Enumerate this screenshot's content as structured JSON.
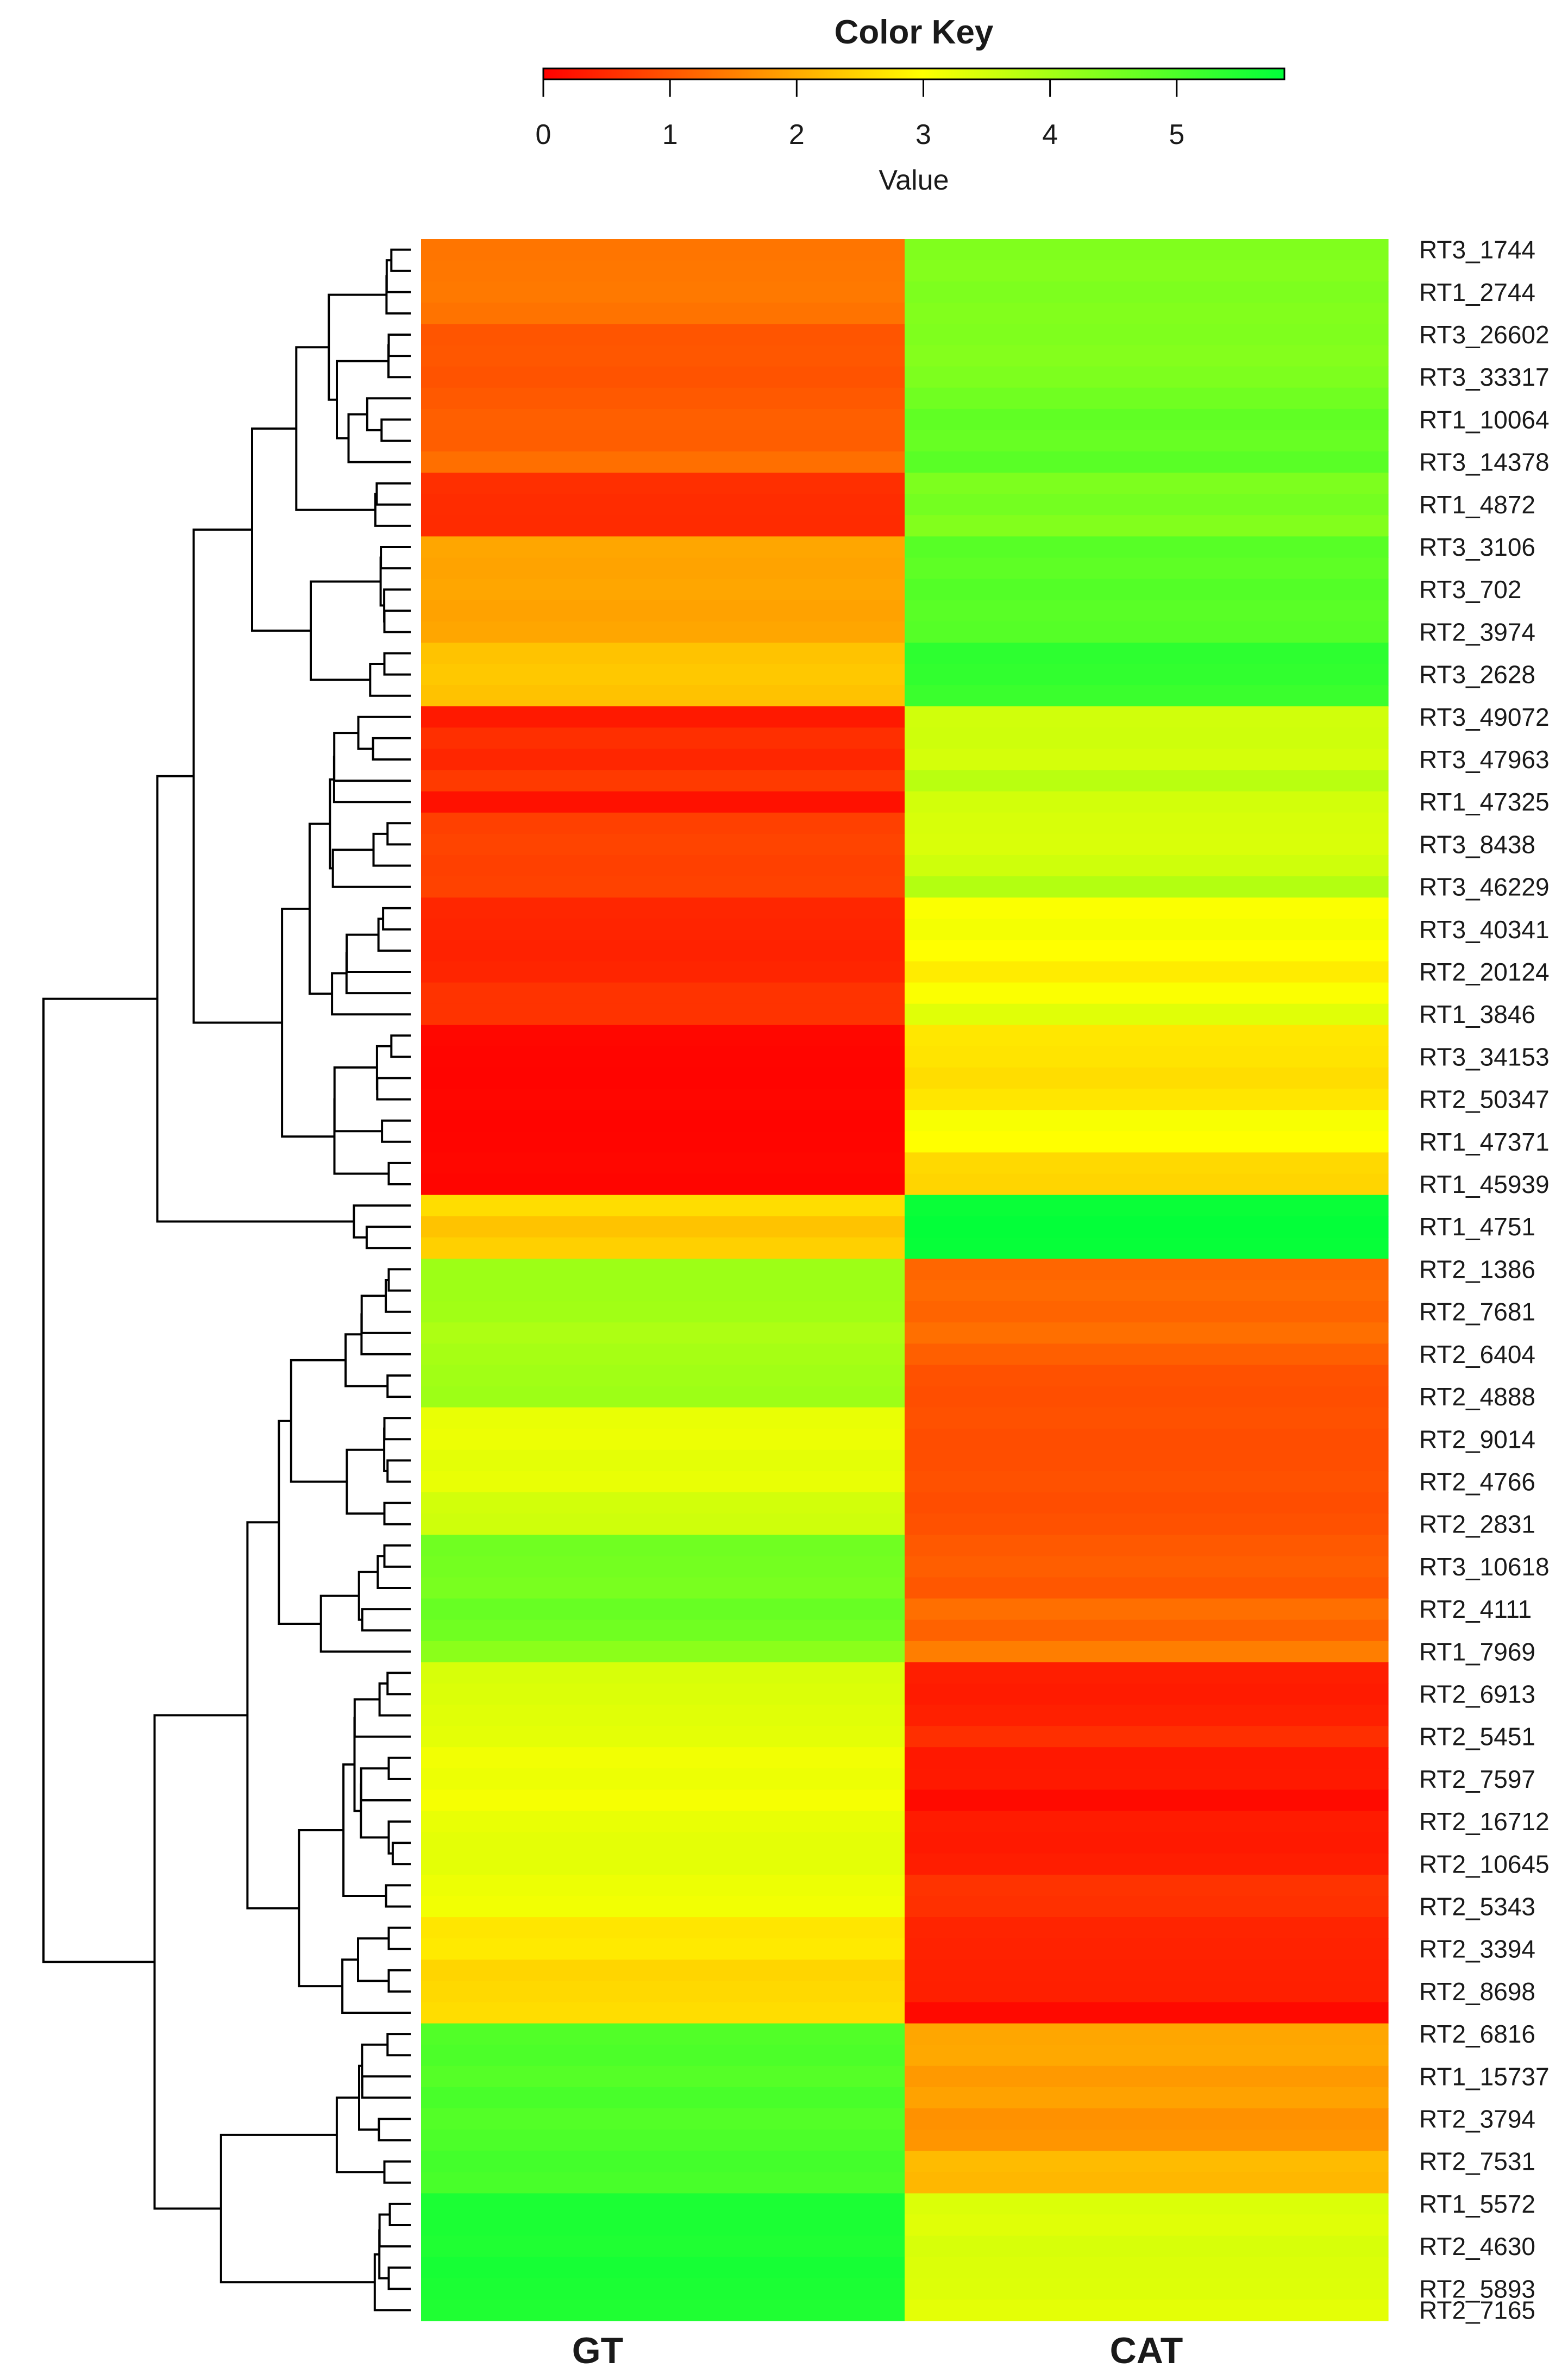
{
  "chart_data": {
    "type": "heatmap",
    "color_key": {
      "title": "Color Key",
      "xlabel": "Value",
      "ticks": [
        0,
        1,
        2,
        3,
        4,
        5
      ],
      "range": [
        0,
        5.85
      ],
      "colors": {
        "low": "#ff0000",
        "mid": "#ffff00",
        "high": "#00ff3a"
      }
    },
    "columns": [
      "GT",
      "CAT"
    ],
    "rows": [
      {
        "label": "RT3_1744",
        "values": [
          1.38,
          4.42
        ]
      },
      {
        "label": "",
        "values": [
          1.4,
          4.38
        ]
      },
      {
        "label": "RT1_2744",
        "values": [
          1.42,
          4.45
        ]
      },
      {
        "label": "",
        "values": [
          1.35,
          4.4
        ]
      },
      {
        "label": "RT3_26602",
        "values": [
          1.0,
          4.43
        ]
      },
      {
        "label": "",
        "values": [
          1.02,
          4.38
        ]
      },
      {
        "label": "RT3_33317",
        "values": [
          0.98,
          4.45
        ]
      },
      {
        "label": "",
        "values": [
          1.05,
          4.6
        ]
      },
      {
        "label": "RT1_10064",
        "values": [
          1.12,
          4.78
        ]
      },
      {
        "label": "",
        "values": [
          1.1,
          4.7
        ]
      },
      {
        "label": "RT3_14378",
        "values": [
          1.3,
          4.85
        ]
      },
      {
        "label": "",
        "values": [
          0.55,
          4.45
        ]
      },
      {
        "label": "RT1_4872",
        "values": [
          0.52,
          4.55
        ]
      },
      {
        "label": "",
        "values": [
          0.5,
          4.4
        ]
      },
      {
        "label": "RT3_3106",
        "values": [
          1.95,
          4.88
        ]
      },
      {
        "label": "",
        "values": [
          1.92,
          4.8
        ]
      },
      {
        "label": "RT3_702",
        "values": [
          1.95,
          4.92
        ]
      },
      {
        "label": "",
        "values": [
          1.9,
          4.85
        ]
      },
      {
        "label": "RT2_3974",
        "values": [
          1.95,
          4.9
        ]
      },
      {
        "label": "",
        "values": [
          2.3,
          5.35
        ]
      },
      {
        "label": "RT3_2628",
        "values": [
          2.35,
          5.3
        ]
      },
      {
        "label": "",
        "values": [
          2.28,
          5.2
        ]
      },
      {
        "label": "RT3_49072",
        "values": [
          0.3,
          3.52
        ]
      },
      {
        "label": "",
        "values": [
          0.55,
          3.55
        ]
      },
      {
        "label": "RT3_47963",
        "values": [
          0.45,
          3.48
        ]
      },
      {
        "label": "",
        "values": [
          0.68,
          3.78
        ]
      },
      {
        "label": "RT1_47325",
        "values": [
          0.2,
          3.5
        ]
      },
      {
        "label": "",
        "values": [
          0.75,
          3.45
        ]
      },
      {
        "label": "RT3_8438",
        "values": [
          0.8,
          3.42
        ]
      },
      {
        "label": "",
        "values": [
          0.75,
          3.55
        ]
      },
      {
        "label": "RT3_46229",
        "values": [
          0.78,
          3.85
        ]
      },
      {
        "label": "",
        "values": [
          0.45,
          3.05
        ]
      },
      {
        "label": "RT3_40341",
        "values": [
          0.42,
          3.12
        ]
      },
      {
        "label": "",
        "values": [
          0.4,
          3.0
        ]
      },
      {
        "label": "RT2_20124",
        "values": [
          0.44,
          2.78
        ]
      },
      {
        "label": "",
        "values": [
          0.6,
          3.05
        ]
      },
      {
        "label": "RT1_3846",
        "values": [
          0.6,
          3.35
        ]
      },
      {
        "label": "",
        "values": [
          0.08,
          2.72
        ]
      },
      {
        "label": "RT3_34153",
        "values": [
          0.06,
          2.68
        ]
      },
      {
        "label": "",
        "values": [
          0.05,
          2.6
        ]
      },
      {
        "label": "RT2_50347",
        "values": [
          0.07,
          2.7
        ]
      },
      {
        "label": "",
        "values": [
          0.05,
          3.08
        ]
      },
      {
        "label": "RT1_47371",
        "values": [
          0.06,
          3.0
        ]
      },
      {
        "label": "",
        "values": [
          0.08,
          2.55
        ]
      },
      {
        "label": "RT1_45939",
        "values": [
          0.06,
          2.5
        ]
      },
      {
        "label": "",
        "values": [
          2.6,
          5.75
        ]
      },
      {
        "label": "RT1_4751",
        "values": [
          2.3,
          5.82
        ]
      },
      {
        "label": "",
        "values": [
          2.45,
          5.78
        ]
      },
      {
        "label": "RT2_1386",
        "values": [
          4.1,
          1.2
        ]
      },
      {
        "label": "",
        "values": [
          4.08,
          1.25
        ]
      },
      {
        "label": "RT2_7681",
        "values": [
          4.05,
          1.18
        ]
      },
      {
        "label": "",
        "values": [
          3.92,
          1.3
        ]
      },
      {
        "label": "RT2_6404",
        "values": [
          4.0,
          1.12
        ]
      },
      {
        "label": "",
        "values": [
          4.05,
          0.95
        ]
      },
      {
        "label": "RT2_4888",
        "values": [
          4.1,
          0.92
        ]
      },
      {
        "label": "",
        "values": [
          3.25,
          0.95
        ]
      },
      {
        "label": "RT2_9014",
        "values": [
          3.2,
          0.9
        ]
      },
      {
        "label": "",
        "values": [
          3.3,
          0.92
        ]
      },
      {
        "label": "RT2_4766",
        "values": [
          3.25,
          0.95
        ]
      },
      {
        "label": "",
        "values": [
          3.5,
          0.9
        ]
      },
      {
        "label": "RT2_2831",
        "values": [
          3.55,
          0.95
        ]
      },
      {
        "label": "",
        "values": [
          4.6,
          1.05
        ]
      },
      {
        "label": "RT3_10618",
        "values": [
          4.55,
          1.1
        ]
      },
      {
        "label": "",
        "values": [
          4.5,
          1.02
        ]
      },
      {
        "label": "RT2_4111",
        "values": [
          4.7,
          1.3
        ]
      },
      {
        "label": "",
        "values": [
          4.6,
          1.15
        ]
      },
      {
        "label": "RT1_7969",
        "values": [
          4.3,
          1.48
        ]
      },
      {
        "label": "",
        "values": [
          3.45,
          0.35
        ]
      },
      {
        "label": "RT2_6913",
        "values": [
          3.4,
          0.32
        ]
      },
      {
        "label": "",
        "values": [
          3.35,
          0.38
        ]
      },
      {
        "label": "RT2_5451",
        "values": [
          3.3,
          0.55
        ]
      },
      {
        "label": "",
        "values": [
          3.15,
          0.28
        ]
      },
      {
        "label": "RT2_7597",
        "values": [
          3.2,
          0.3
        ]
      },
      {
        "label": "",
        "values": [
          3.1,
          0.12
        ]
      },
      {
        "label": "RT2_16712",
        "values": [
          3.25,
          0.32
        ]
      },
      {
        "label": "",
        "values": [
          3.3,
          0.3
        ]
      },
      {
        "label": "RT2_10645",
        "values": [
          3.3,
          0.34
        ]
      },
      {
        "label": "",
        "values": [
          3.2,
          0.6
        ]
      },
      {
        "label": "RT2_5343",
        "values": [
          3.15,
          0.56
        ]
      },
      {
        "label": "",
        "values": [
          2.7,
          0.42
        ]
      },
      {
        "label": "RT2_3394",
        "values": [
          2.75,
          0.4
        ]
      },
      {
        "label": "",
        "values": [
          2.5,
          0.38
        ]
      },
      {
        "label": "RT2_8698",
        "values": [
          2.55,
          0.36
        ]
      },
      {
        "label": "",
        "values": [
          2.6,
          0.1
        ]
      },
      {
        "label": "RT2_6816",
        "values": [
          4.95,
          1.95
        ]
      },
      {
        "label": "",
        "values": [
          5.0,
          1.98
        ]
      },
      {
        "label": "RT1_15737",
        "values": [
          4.9,
          1.8
        ]
      },
      {
        "label": "",
        "values": [
          5.05,
          1.9
        ]
      },
      {
        "label": "RT2_3794",
        "values": [
          4.92,
          1.7
        ]
      },
      {
        "label": "",
        "values": [
          5.0,
          1.75
        ]
      },
      {
        "label": "RT2_7531",
        "values": [
          5.1,
          2.2
        ]
      },
      {
        "label": "",
        "values": [
          5.05,
          2.15
        ]
      },
      {
        "label": "RT1_5572",
        "values": [
          5.55,
          3.4
        ]
      },
      {
        "label": "",
        "values": [
          5.55,
          3.35
        ]
      },
      {
        "label": "RT2_4630",
        "values": [
          5.5,
          3.45
        ]
      },
      {
        "label": "",
        "values": [
          5.6,
          3.4
        ]
      },
      {
        "label": "RT2_5893",
        "values": [
          5.55,
          3.38
        ]
      },
      {
        "label": "RT2_7165",
        "values": [
          5.5,
          3.3
        ]
      }
    ]
  }
}
